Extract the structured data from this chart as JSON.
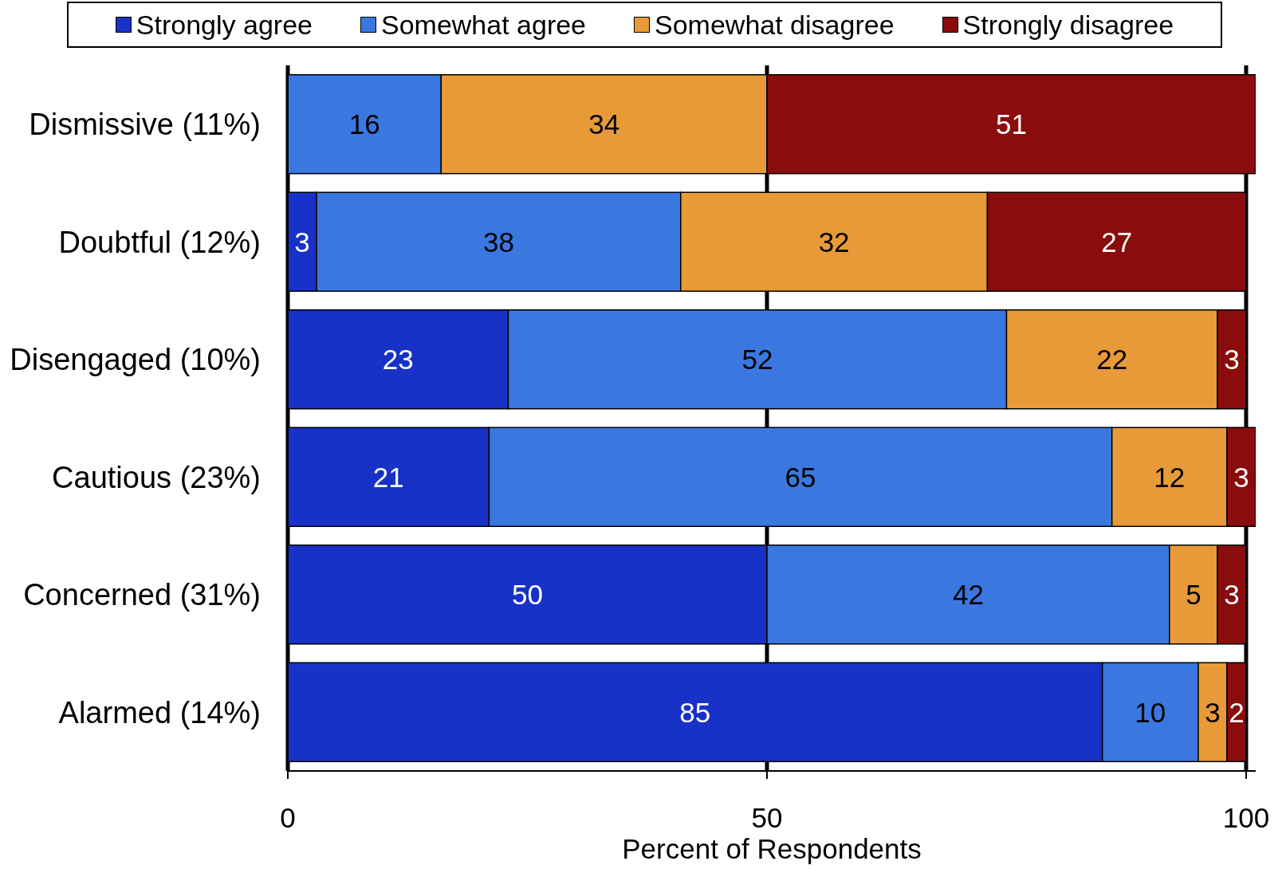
{
  "chart_data": {
    "type": "bar",
    "orientation": "horizontal",
    "stacked": true,
    "categories": [
      "Dismissive (11%)",
      "Doubtful (12%)",
      "Disengaged (10%)",
      "Cautious (23%)",
      "Concerned (31%)",
      "Alarmed (14%)"
    ],
    "series": [
      {
        "name": "Strongly agree",
        "color": "#1832c8",
        "values": [
          null,
          3,
          23,
          21,
          50,
          85
        ]
      },
      {
        "name": "Somewhat agree",
        "color": "#3a78e0",
        "values": [
          16,
          38,
          52,
          65,
          42,
          10
        ]
      },
      {
        "name": "Somewhat disagree",
        "color": "#e89a38",
        "values": [
          34,
          32,
          22,
          12,
          5,
          3
        ]
      },
      {
        "name": "Strongly disagree",
        "color": "#8a0c0c",
        "values": [
          51,
          27,
          3,
          3,
          3,
          2
        ]
      }
    ],
    "xlabel": "Percent of Respondents",
    "xlim": [
      0,
      101
    ],
    "xticks": [
      0,
      50,
      100
    ],
    "grid": "x",
    "legend": "top",
    "data_labels": true
  }
}
